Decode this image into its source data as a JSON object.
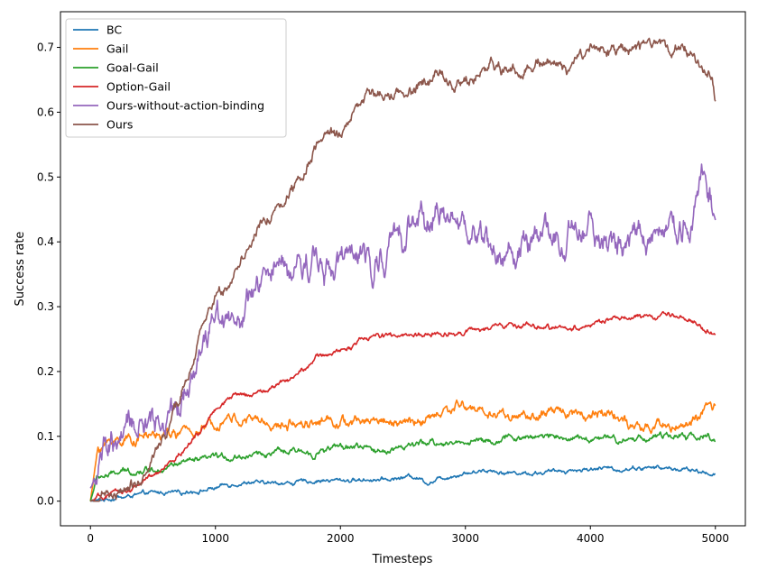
{
  "chart_data": {
    "type": "line",
    "title": "",
    "xlabel": "Timesteps",
    "ylabel": "Success rate",
    "xlim": [
      -240,
      5240
    ],
    "ylim": [
      -0.038,
      0.755
    ],
    "xticks": [
      0,
      1000,
      2000,
      3000,
      4000,
      5000
    ],
    "xtick_labels": [
      "0",
      "1000",
      "2000",
      "3000",
      "4000",
      "5000"
    ],
    "yticks": [
      0.0,
      0.1,
      0.2,
      0.3,
      0.4,
      0.5,
      0.6,
      0.7
    ],
    "ytick_labels": [
      "0.0",
      "0.1",
      "0.2",
      "0.3",
      "0.4",
      "0.5",
      "0.6",
      "0.7"
    ],
    "grid": false,
    "legend": "top-left",
    "series": [
      {
        "name": "BC",
        "color": "#1f77b4",
        "noise": 0.004,
        "x": [
          0,
          200,
          400,
          600,
          800,
          1000,
          1200,
          1400,
          1600,
          1800,
          2000,
          2200,
          2400,
          2600,
          2700,
          2800,
          3000,
          3200,
          3400,
          3600,
          3800,
          4000,
          4200,
          4400,
          4600,
          4800,
          5000
        ],
        "y": [
          0.0,
          0.005,
          0.01,
          0.013,
          0.017,
          0.02,
          0.027,
          0.026,
          0.028,
          0.03,
          0.033,
          0.033,
          0.036,
          0.04,
          0.03,
          0.038,
          0.045,
          0.048,
          0.045,
          0.043,
          0.046,
          0.049,
          0.05,
          0.052,
          0.05,
          0.047,
          0.043
        ]
      },
      {
        "name": "Gail",
        "color": "#ff7f0e",
        "noise": 0.01,
        "x": [
          0,
          60,
          150,
          300,
          500,
          700,
          900,
          1100,
          1300,
          1500,
          1700,
          1900,
          2100,
          2300,
          2500,
          2700,
          2900,
          3000,
          3200,
          3400,
          3600,
          3800,
          4000,
          4200,
          4400,
          4600,
          4800,
          5000
        ],
        "y": [
          0.0,
          0.08,
          0.09,
          0.1,
          0.1,
          0.1,
          0.11,
          0.12,
          0.12,
          0.11,
          0.12,
          0.12,
          0.115,
          0.125,
          0.12,
          0.13,
          0.15,
          0.15,
          0.13,
          0.13,
          0.125,
          0.135,
          0.13,
          0.14,
          0.11,
          0.115,
          0.12,
          0.145
        ]
      },
      {
        "name": "Goal-Gail",
        "color": "#2ca02c",
        "noise": 0.006,
        "x": [
          0,
          50,
          150,
          300,
          500,
          700,
          900,
          1100,
          1300,
          1500,
          1700,
          1900,
          2100,
          2300,
          2500,
          2700,
          2900,
          3100,
          3300,
          3500,
          3700,
          3900,
          4100,
          4300,
          4500,
          4700,
          4900,
          5000
        ],
        "y": [
          0.0,
          0.035,
          0.04,
          0.045,
          0.05,
          0.055,
          0.06,
          0.065,
          0.07,
          0.075,
          0.075,
          0.08,
          0.085,
          0.08,
          0.085,
          0.09,
          0.09,
          0.095,
          0.095,
          0.1,
          0.105,
          0.1,
          0.1,
          0.1,
          0.1,
          0.1,
          0.1,
          0.095
        ]
      },
      {
        "name": "Option-Gail",
        "color": "#d62728",
        "noise": 0.005,
        "x": [
          0,
          200,
          400,
          600,
          800,
          1000,
          1100,
          1200,
          1400,
          1600,
          1800,
          2000,
          2200,
          2400,
          2600,
          2800,
          3000,
          3200,
          3400,
          3600,
          3800,
          4000,
          4200,
          4400,
          4600,
          4800,
          5000
        ],
        "y": [
          0.0,
          0.01,
          0.025,
          0.05,
          0.09,
          0.14,
          0.155,
          0.165,
          0.17,
          0.19,
          0.22,
          0.23,
          0.25,
          0.255,
          0.258,
          0.26,
          0.265,
          0.268,
          0.27,
          0.27,
          0.268,
          0.272,
          0.28,
          0.28,
          0.285,
          0.28,
          0.25
        ]
      },
      {
        "name": "Ours-without-action-binding",
        "color": "#9467bd",
        "noise": 0.028,
        "x": [
          0,
          100,
          300,
          500,
          700,
          800,
          900,
          1000,
          1100,
          1200,
          1400,
          1600,
          1800,
          2000,
          2200,
          2400,
          2600,
          2800,
          3000,
          3200,
          3400,
          3600,
          3800,
          4000,
          4200,
          4400,
          4600,
          4800,
          4900,
          5000
        ],
        "y": [
          0.02,
          0.07,
          0.09,
          0.11,
          0.16,
          0.2,
          0.25,
          0.3,
          0.3,
          0.28,
          0.34,
          0.36,
          0.39,
          0.38,
          0.36,
          0.4,
          0.42,
          0.43,
          0.42,
          0.39,
          0.38,
          0.41,
          0.4,
          0.42,
          0.4,
          0.41,
          0.43,
          0.42,
          0.5,
          0.43
        ]
      },
      {
        "name": "Ours",
        "color": "#8c564b",
        "noise": 0.012,
        "x": [
          0,
          200,
          400,
          600,
          800,
          1000,
          1100,
          1200,
          1400,
          1600,
          1800,
          2000,
          2200,
          2400,
          2600,
          2800,
          3000,
          3200,
          3400,
          3600,
          3800,
          4000,
          4200,
          4400,
          4500,
          4600,
          4800,
          4950,
          5000
        ],
        "y": [
          0.0,
          0.01,
          0.03,
          0.1,
          0.2,
          0.32,
          0.33,
          0.38,
          0.43,
          0.48,
          0.55,
          0.57,
          0.62,
          0.63,
          0.64,
          0.655,
          0.66,
          0.67,
          0.665,
          0.68,
          0.67,
          0.695,
          0.69,
          0.7,
          0.72,
          0.7,
          0.695,
          0.66,
          0.615
        ]
      }
    ]
  }
}
